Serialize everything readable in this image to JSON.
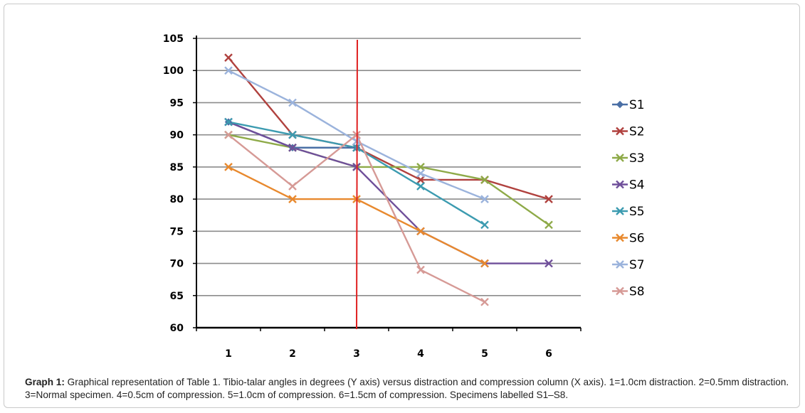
{
  "colors": {
    "grid": "#8c8c8c",
    "axis": "#000000",
    "marker_line": "#e02020"
  },
  "chart_data": {
    "type": "line",
    "x": [
      1,
      2,
      3,
      4,
      5,
      6
    ],
    "ylim": [
      60,
      105
    ],
    "yticks": [
      60,
      65,
      70,
      75,
      80,
      85,
      90,
      95,
      100,
      105
    ],
    "grid": true,
    "legend": "right",
    "vertical_marker_x": 3,
    "series": [
      {
        "name": "S1",
        "color": "#4a6fa5",
        "marker": "diamond",
        "values": [
          92,
          88,
          88,
          null,
          null,
          null
        ]
      },
      {
        "name": "S2",
        "color": "#b0413e",
        "marker": "x",
        "values": [
          102,
          90,
          88,
          83,
          83,
          80
        ]
      },
      {
        "name": "S3",
        "color": "#8eaa48",
        "marker": "x",
        "values": [
          90,
          88,
          85,
          85,
          83,
          76
        ]
      },
      {
        "name": "S4",
        "color": "#6f4f9a",
        "marker": "x",
        "values": [
          92,
          88,
          85,
          75,
          70,
          70
        ]
      },
      {
        "name": "S5",
        "color": "#3c9bb0",
        "marker": "x",
        "values": [
          92,
          90,
          88,
          82,
          76,
          null
        ]
      },
      {
        "name": "S6",
        "color": "#e8892e",
        "marker": "x",
        "values": [
          85,
          80,
          80,
          75,
          70,
          null
        ]
      },
      {
        "name": "S7",
        "color": "#9bb3dc",
        "marker": "x",
        "values": [
          100,
          95,
          89,
          84,
          80,
          null
        ]
      },
      {
        "name": "S8",
        "color": "#d69a96",
        "marker": "x",
        "values": [
          90,
          82,
          90,
          69,
          64,
          null
        ]
      }
    ]
  },
  "caption": {
    "label": "Graph 1:",
    "text": " Graphical representation of Table 1.  Tibio-talar angles in degrees (Y axis) versus distraction and compression column (X axis).  1=1.0cm distraction. 2=0.5mm distraction.  3=Normal specimen.  4=0.5cm of compression.  5=1.0cm of compression.  6=1.5cm of compression.  Specimens labelled S1–S8."
  }
}
